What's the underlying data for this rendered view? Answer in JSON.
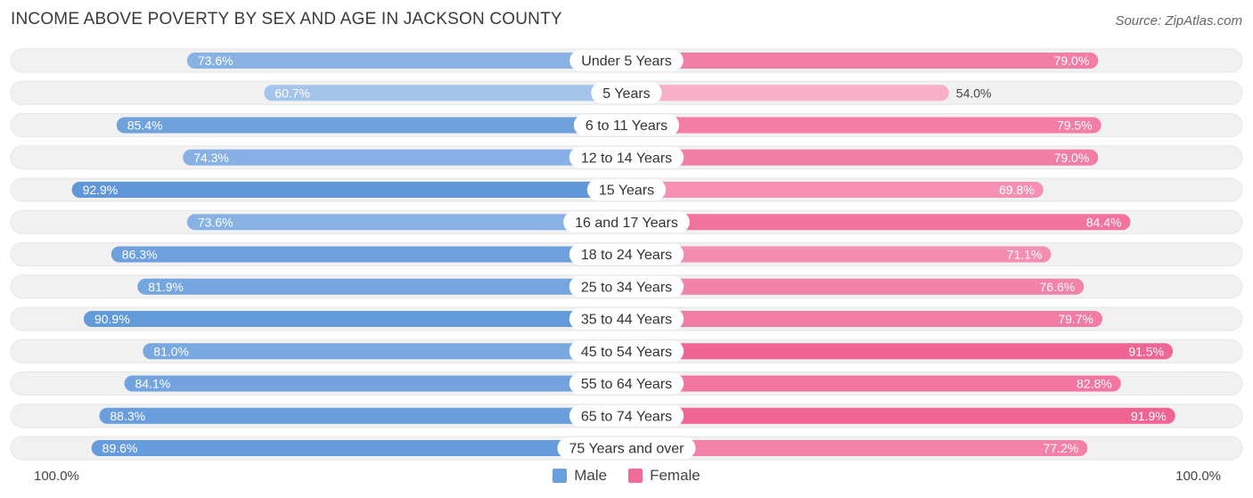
{
  "chart_data": {
    "type": "bar",
    "orientation": "horizontal-diverging",
    "title": "INCOME ABOVE POVERTY BY SEX AND AGE IN JACKSON COUNTY",
    "source": "Source: ZipAtlas.com",
    "categories": [
      "Under 5 Years",
      "5 Years",
      "6 to 11 Years",
      "12 to 14 Years",
      "15 Years",
      "16 and 17 Years",
      "18 to 24 Years",
      "25 to 34 Years",
      "35 to 44 Years",
      "45 to 54 Years",
      "55 to 64 Years",
      "65 to 74 Years",
      "75 Years and over"
    ],
    "series": [
      {
        "name": "Male",
        "values": [
          73.6,
          60.7,
          85.4,
          74.3,
          92.9,
          73.6,
          86.3,
          81.9,
          90.9,
          81.0,
          84.1,
          88.3,
          89.6
        ],
        "labels": [
          "73.6%",
          "60.7%",
          "85.4%",
          "74.3%",
          "92.9%",
          "73.6%",
          "86.3%",
          "81.9%",
          "90.9%",
          "81.0%",
          "84.1%",
          "88.3%",
          "89.6%"
        ]
      },
      {
        "name": "Female",
        "values": [
          79.0,
          54.0,
          79.5,
          79.0,
          69.8,
          84.4,
          71.1,
          76.6,
          79.7,
          91.5,
          82.8,
          91.9,
          77.2
        ],
        "labels": [
          "79.0%",
          "54.0%",
          "79.5%",
          "79.0%",
          "69.8%",
          "84.4%",
          "71.1%",
          "76.6%",
          "79.7%",
          "91.5%",
          "82.8%",
          "91.9%",
          "77.2%"
        ]
      }
    ],
    "xlim": [
      0,
      100
    ],
    "axis_left_label": "100.0%",
    "axis_right_label": "100.0%",
    "legend": [
      {
        "name": "Male",
        "color": "#6a9fdc"
      },
      {
        "name": "Female",
        "color": "#f06b98"
      }
    ],
    "legend_position": "bottom-center",
    "colors": {
      "male_dark": "#5f97d9",
      "male_light": "#b2cdef",
      "female_dark": "#f06292",
      "female_light": "#f8b0c8",
      "track": "#f1f1f1"
    }
  }
}
